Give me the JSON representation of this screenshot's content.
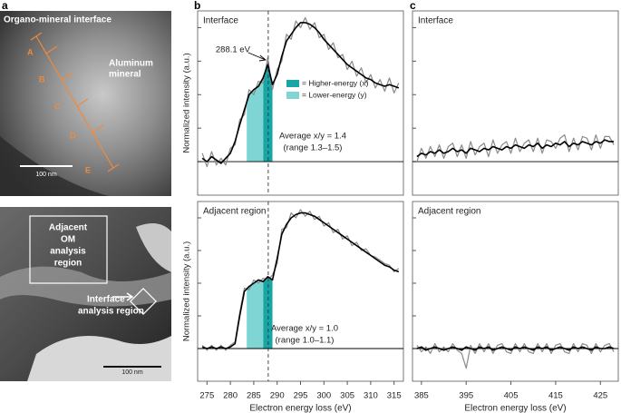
{
  "panel_labels": [
    "a",
    "b",
    "c"
  ],
  "images": {
    "top": {
      "title": "Organo-mineral interface",
      "mineral": [
        "Aluminum",
        "mineral"
      ],
      "points": [
        "A",
        "B",
        "C",
        "D",
        "E"
      ],
      "scale": "100 nm"
    },
    "bottom": {
      "box": [
        "Adjacent",
        "OM",
        "analysis",
        "region"
      ],
      "interface": [
        "Interface",
        "analysis region"
      ],
      "scale": "100 nm"
    }
  },
  "chart_data": [
    {
      "type": "line",
      "label": "Interface",
      "ylabel": "Normalized intensity (a.u.)",
      "annotation": "288.1 eV",
      "marker_x": 288.1,
      "notes": [
        "Average x/y = 1.4",
        "(range 1.3–1.5)"
      ],
      "bands": [
        {
          "label": "= Higher-energy (x)",
          "color": "#16a6a6",
          "range": [
            287,
            289
          ]
        },
        {
          "label": "= Lower-energy (y)",
          "color": "#7fd4d4",
          "range": [
            283.5,
            287
          ]
        }
      ],
      "xlim": [
        273,
        317
      ],
      "ylim": [
        -0.2,
        0.9
      ],
      "yticks": [
        0,
        0.2,
        0.4,
        0.6,
        0.8
      ],
      "x": [
        274,
        275,
        276,
        277,
        278,
        279,
        280,
        281,
        282,
        283,
        284,
        285,
        286,
        287,
        288,
        289,
        290,
        291,
        292,
        293,
        294,
        295,
        296,
        297,
        298,
        299,
        300,
        301,
        302,
        303,
        304,
        305,
        306,
        307,
        308,
        309,
        310,
        311,
        312,
        313,
        314,
        315,
        316
      ],
      "series": [
        {
          "color": "#8a8a8a",
          "values": [
            0.05,
            -0.03,
            0.06,
            -0.02,
            0.02,
            -0.02,
            0.08,
            0.1,
            0.25,
            0.28,
            0.43,
            0.4,
            0.48,
            0.47,
            0.62,
            0.43,
            0.55,
            0.6,
            0.76,
            0.73,
            0.84,
            0.8,
            0.86,
            0.79,
            0.83,
            0.74,
            0.76,
            0.67,
            0.71,
            0.62,
            0.64,
            0.55,
            0.6,
            0.51,
            0.56,
            0.47,
            0.52,
            0.44,
            0.49,
            0.42,
            0.5,
            0.41,
            0.47
          ]
        },
        {
          "color": "#000000",
          "values": [
            0.02,
            0.0,
            0.03,
            0.01,
            -0.01,
            0.02,
            0.05,
            0.12,
            0.22,
            0.31,
            0.4,
            0.43,
            0.45,
            0.5,
            0.58,
            0.46,
            0.52,
            0.63,
            0.72,
            0.76,
            0.8,
            0.83,
            0.83,
            0.82,
            0.8,
            0.77,
            0.73,
            0.7,
            0.67,
            0.64,
            0.61,
            0.58,
            0.56,
            0.54,
            0.52,
            0.5,
            0.49,
            0.47,
            0.46,
            0.45,
            0.46,
            0.45,
            0.44
          ]
        }
      ]
    },
    {
      "type": "line",
      "label": "Adjacent region",
      "ylabel": "Normalized intensity (a.u.)",
      "xlabel": "Electron energy loss (eV)",
      "marker_x": 288.1,
      "notes": [
        "Average x/y = 1.0",
        "(range 1.0–1.1)"
      ],
      "bands": [
        {
          "color": "#16a6a6",
          "range": [
            287,
            289
          ]
        },
        {
          "color": "#7fd4d4",
          "range": [
            283.5,
            287
          ]
        }
      ],
      "xlim": [
        273,
        317
      ],
      "xticks": [
        275,
        280,
        285,
        290,
        295,
        300,
        305,
        310,
        315
      ],
      "ylim": [
        -0.2,
        0.9
      ],
      "yticks": [
        0,
        0.2,
        0.4,
        0.6,
        0.8
      ],
      "x": [
        274,
        275,
        276,
        277,
        278,
        279,
        280,
        281,
        282,
        283,
        284,
        285,
        286,
        287,
        288,
        289,
        290,
        291,
        292,
        293,
        294,
        295,
        296,
        297,
        298,
        299,
        300,
        301,
        302,
        303,
        304,
        305,
        306,
        307,
        308,
        309,
        310,
        311,
        312,
        313,
        314,
        315,
        316
      ],
      "series": [
        {
          "color": "#8a8a8a",
          "values": [
            0.02,
            -0.01,
            0.02,
            -0.01,
            0.02,
            -0.01,
            0.02,
            0.04,
            0.22,
            0.37,
            0.36,
            0.42,
            0.4,
            0.43,
            0.42,
            0.45,
            0.52,
            0.73,
            0.74,
            0.83,
            0.8,
            0.85,
            0.81,
            0.84,
            0.79,
            0.81,
            0.75,
            0.77,
            0.71,
            0.73,
            0.67,
            0.69,
            0.63,
            0.65,
            0.6,
            0.61,
            0.57,
            0.56,
            0.54,
            0.52,
            0.51,
            0.47,
            0.49
          ]
        },
        {
          "color": "#000000",
          "values": [
            0.01,
            0.0,
            0.01,
            0.0,
            0.01,
            0.0,
            0.01,
            0.03,
            0.2,
            0.35,
            0.38,
            0.4,
            0.42,
            0.41,
            0.44,
            0.42,
            0.55,
            0.7,
            0.76,
            0.8,
            0.82,
            0.83,
            0.83,
            0.82,
            0.81,
            0.79,
            0.77,
            0.75,
            0.73,
            0.71,
            0.69,
            0.67,
            0.65,
            0.63,
            0.61,
            0.59,
            0.57,
            0.55,
            0.53,
            0.51,
            0.5,
            0.48,
            0.47
          ]
        }
      ]
    },
    {
      "type": "line",
      "label": "Interface",
      "xlim": [
        383,
        429
      ],
      "ylim": [
        -0.2,
        0.9
      ],
      "yticks": [
        0,
        0.2,
        0.4,
        0.6,
        0.8
      ],
      "x": [
        384,
        385,
        386,
        387,
        388,
        389,
        390,
        391,
        392,
        393,
        394,
        395,
        396,
        397,
        398,
        399,
        400,
        401,
        402,
        403,
        404,
        405,
        406,
        407,
        408,
        409,
        410,
        411,
        412,
        413,
        414,
        415,
        416,
        417,
        418,
        419,
        420,
        421,
        422,
        423,
        424,
        425,
        426,
        427,
        428
      ],
      "series": [
        {
          "color": "#8a8a8a",
          "values": [
            0.0,
            0.08,
            0.02,
            0.09,
            0.03,
            0.1,
            0.02,
            0.09,
            0.11,
            0.03,
            0.1,
            0.02,
            0.12,
            0.04,
            0.09,
            0.11,
            0.03,
            0.13,
            0.05,
            0.1,
            0.12,
            0.05,
            0.14,
            0.06,
            0.11,
            0.13,
            0.06,
            0.14,
            0.05,
            0.13,
            0.12,
            0.08,
            0.14,
            0.16,
            0.06,
            0.14,
            0.07,
            0.15,
            0.14,
            0.07,
            0.16,
            0.08,
            0.15,
            0.15,
            0.1
          ]
        },
        {
          "color": "#000000",
          "values": [
            0.03,
            0.05,
            0.04,
            0.06,
            0.05,
            0.07,
            0.05,
            0.06,
            0.08,
            0.06,
            0.07,
            0.05,
            0.08,
            0.07,
            0.06,
            0.08,
            0.07,
            0.09,
            0.08,
            0.07,
            0.09,
            0.08,
            0.1,
            0.09,
            0.08,
            0.1,
            0.09,
            0.11,
            0.08,
            0.1,
            0.09,
            0.11,
            0.1,
            0.12,
            0.09,
            0.11,
            0.1,
            0.12,
            0.11,
            0.1,
            0.12,
            0.11,
            0.13,
            0.12,
            0.12
          ]
        }
      ]
    },
    {
      "type": "line",
      "label": "Adjacent region",
      "xlabel": "Electron energy loss (eV)",
      "xlim": [
        383,
        429
      ],
      "xticks": [
        385,
        395,
        405,
        415,
        425
      ],
      "ylim": [
        -0.2,
        0.9
      ],
      "yticks": [
        0,
        0.2,
        0.4,
        0.6,
        0.8
      ],
      "x": [
        384,
        385,
        386,
        387,
        388,
        389,
        390,
        391,
        392,
        393,
        394,
        395,
        396,
        397,
        398,
        399,
        400,
        401,
        402,
        403,
        404,
        405,
        406,
        407,
        408,
        409,
        410,
        411,
        412,
        413,
        414,
        415,
        416,
        417,
        418,
        419,
        420,
        421,
        422,
        423,
        424,
        425,
        426,
        427,
        428
      ],
      "series": [
        {
          "color": "#8a8a8a",
          "values": [
            0.02,
            -0.02,
            0.01,
            -0.03,
            0.03,
            -0.02,
            0.01,
            -0.02,
            0.03,
            -0.01,
            -0.03,
            -0.12,
            0.02,
            -0.03,
            0.03,
            -0.02,
            0.03,
            -0.03,
            0.02,
            0.03,
            -0.02,
            -0.03,
            0.03,
            -0.02,
            0.03,
            -0.02,
            -0.03,
            0.03,
            -0.02,
            0.03,
            -0.03,
            0.02,
            0.03,
            -0.02,
            -0.03,
            0.03,
            -0.02,
            0.03,
            0.02,
            -0.03,
            0.03,
            -0.02,
            0.02,
            0.03,
            -0.02
          ]
        },
        {
          "color": "#000000",
          "values": [
            0.0,
            0.01,
            -0.01,
            0.0,
            0.01,
            0.0,
            -0.01,
            0.0,
            0.01,
            0.0,
            -0.01,
            0.01,
            0.0,
            -0.01,
            0.01,
            0.0,
            0.01,
            -0.01,
            0.0,
            0.01,
            0.0,
            -0.01,
            0.01,
            0.0,
            0.01,
            0.0,
            -0.01,
            0.01,
            0.0,
            0.01,
            -0.01,
            0.0,
            0.01,
            0.0,
            -0.01,
            0.01,
            0.0,
            0.01,
            0.0,
            -0.01,
            0.01,
            0.0,
            0.0,
            0.01,
            0.0
          ]
        }
      ]
    }
  ]
}
